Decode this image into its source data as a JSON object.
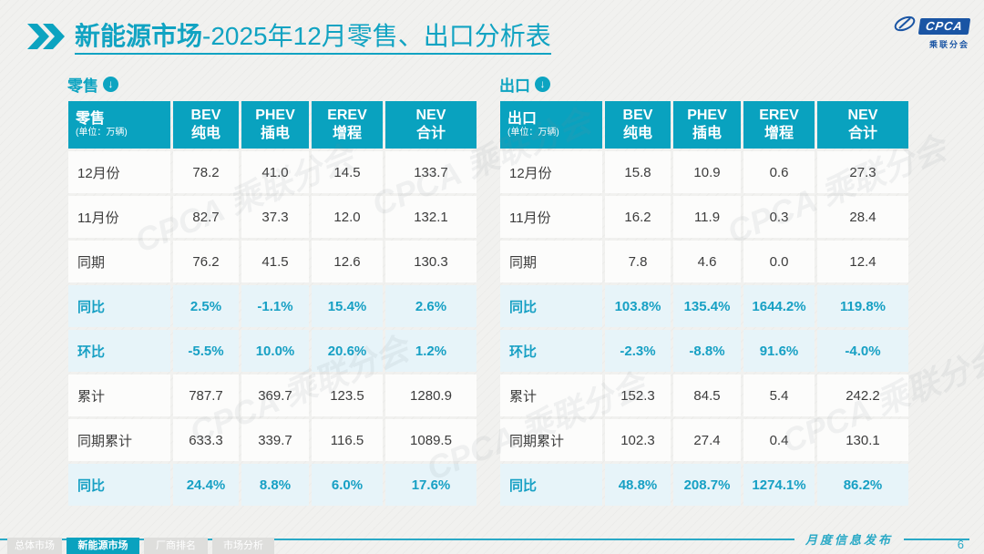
{
  "title": {
    "bold": "新能源市场",
    "rest": "-2025年12月零售、出口分析表"
  },
  "logo": {
    "name": "CPCA",
    "subtitle": "乘联分会"
  },
  "watermark": "CPCA 乘联分会",
  "tables": [
    {
      "caption": "零售",
      "unit": "(单位：万辆)",
      "columns": [
        {
          "en": "BEV",
          "cn": "纯电"
        },
        {
          "en": "PHEV",
          "cn": "插电"
        },
        {
          "en": "EREV",
          "cn": "增程"
        },
        {
          "en": "NEV",
          "cn": "合计"
        }
      ],
      "rows": [
        {
          "label": "12月份",
          "highlight": false,
          "values": [
            "78.2",
            "41.0",
            "14.5",
            "133.7"
          ]
        },
        {
          "label": "11月份",
          "highlight": false,
          "values": [
            "82.7",
            "37.3",
            "12.0",
            "132.1"
          ]
        },
        {
          "label": "同期",
          "highlight": false,
          "values": [
            "76.2",
            "41.5",
            "12.6",
            "130.3"
          ]
        },
        {
          "label": "同比",
          "highlight": true,
          "values": [
            "2.5%",
            "-1.1%",
            "15.4%",
            "2.6%"
          ]
        },
        {
          "label": "环比",
          "highlight": true,
          "values": [
            "-5.5%",
            "10.0%",
            "20.6%",
            "1.2%"
          ]
        },
        {
          "label": "累计",
          "highlight": false,
          "values": [
            "787.7",
            "369.7",
            "123.5",
            "1280.9"
          ]
        },
        {
          "label": "同期累计",
          "highlight": false,
          "values": [
            "633.3",
            "339.7",
            "116.5",
            "1089.5"
          ]
        },
        {
          "label": "同比",
          "highlight": true,
          "values": [
            "24.4%",
            "8.8%",
            "6.0%",
            "17.6%"
          ]
        }
      ]
    },
    {
      "caption": "出口",
      "unit": "(单位：万辆)",
      "columns": [
        {
          "en": "BEV",
          "cn": "纯电"
        },
        {
          "en": "PHEV",
          "cn": "插电"
        },
        {
          "en": "EREV",
          "cn": "增程"
        },
        {
          "en": "NEV",
          "cn": "合计"
        }
      ],
      "rows": [
        {
          "label": "12月份",
          "highlight": false,
          "values": [
            "15.8",
            "10.9",
            "0.6",
            "27.3"
          ]
        },
        {
          "label": "11月份",
          "highlight": false,
          "values": [
            "16.2",
            "11.9",
            "0.3",
            "28.4"
          ]
        },
        {
          "label": "同期",
          "highlight": false,
          "values": [
            "7.8",
            "4.6",
            "0.0",
            "12.4"
          ]
        },
        {
          "label": "同比",
          "highlight": true,
          "values": [
            "103.8%",
            "135.4%",
            "1644.2%",
            "119.8%"
          ]
        },
        {
          "label": "环比",
          "highlight": true,
          "values": [
            "-2.3%",
            "-8.8%",
            "91.6%",
            "-4.0%"
          ]
        },
        {
          "label": "累计",
          "highlight": false,
          "values": [
            "152.3",
            "84.5",
            "5.4",
            "242.2"
          ]
        },
        {
          "label": "同期累计",
          "highlight": false,
          "values": [
            "102.3",
            "27.4",
            "0.4",
            "130.1"
          ]
        },
        {
          "label": "同比",
          "highlight": true,
          "values": [
            "48.8%",
            "208.7%",
            "1274.1%",
            "86.2%"
          ]
        }
      ]
    }
  ],
  "footer": {
    "note": "月度信息发布",
    "page": "6",
    "tabs": [
      {
        "label": "总体市场",
        "active": false
      },
      {
        "label": "新能源市场",
        "active": true
      },
      {
        "label": "厂商排名",
        "active": false
      },
      {
        "label": "市场分析",
        "active": false
      }
    ]
  },
  "icons": {
    "down_arrow": "↓"
  }
}
